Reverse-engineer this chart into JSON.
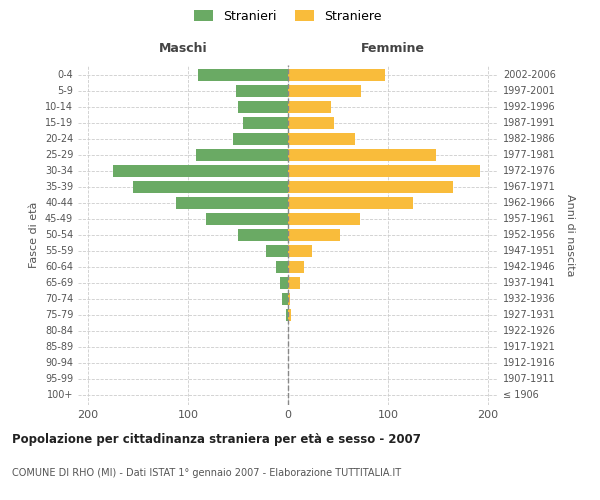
{
  "age_groups": [
    "100+",
    "95-99",
    "90-94",
    "85-89",
    "80-84",
    "75-79",
    "70-74",
    "65-69",
    "60-64",
    "55-59",
    "50-54",
    "45-49",
    "40-44",
    "35-39",
    "30-34",
    "25-29",
    "20-24",
    "15-19",
    "10-14",
    "5-9",
    "0-4"
  ],
  "birth_years": [
    "≤ 1906",
    "1907-1911",
    "1912-1916",
    "1917-1921",
    "1922-1926",
    "1927-1931",
    "1932-1936",
    "1937-1941",
    "1942-1946",
    "1947-1951",
    "1952-1956",
    "1957-1961",
    "1962-1966",
    "1967-1971",
    "1972-1976",
    "1977-1981",
    "1982-1986",
    "1987-1991",
    "1992-1996",
    "1997-2001",
    "2002-2006"
  ],
  "males": [
    0,
    0,
    0,
    0,
    0,
    2,
    6,
    8,
    12,
    22,
    50,
    82,
    112,
    155,
    175,
    92,
    55,
    45,
    50,
    52,
    90
  ],
  "females": [
    0,
    0,
    0,
    0,
    0,
    3,
    2,
    12,
    16,
    24,
    52,
    72,
    125,
    165,
    192,
    148,
    67,
    46,
    43,
    73,
    97
  ],
  "male_color": "#6aaa64",
  "female_color": "#f9bc3b",
  "grid_color": "#cccccc",
  "center_line_color": "#888888",
  "bar_height": 0.75,
  "xlim": 210,
  "title": "Popolazione per cittadinanza straniera per età e sesso - 2007",
  "subtitle": "COMUNE DI RHO (MI) - Dati ISTAT 1° gennaio 2007 - Elaborazione TUTTITALIA.IT",
  "label_maschi": "Maschi",
  "label_femmine": "Femmine",
  "ylabel_left": "Fasce di età",
  "ylabel_right": "Anni di nascita",
  "legend_male": "Stranieri",
  "legend_female": "Straniere",
  "xticks": [
    -200,
    -100,
    0,
    100,
    200
  ],
  "xtick_labels": [
    "200",
    "100",
    "0",
    "100",
    "200"
  ]
}
